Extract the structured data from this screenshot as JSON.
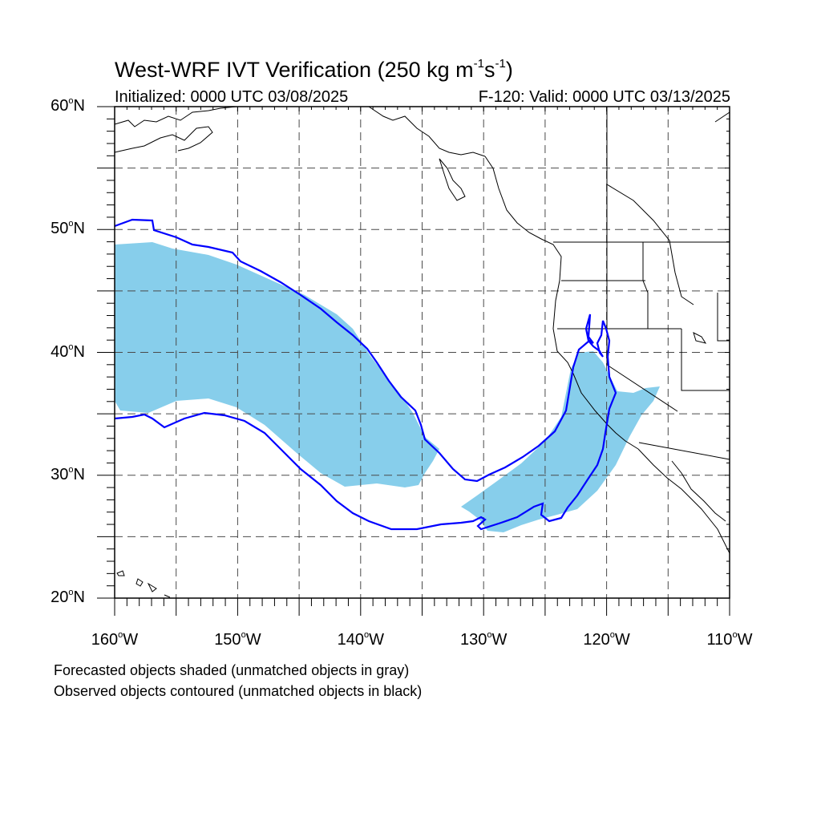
{
  "title": {
    "prefix": "West-WRF IVT Verification (250 kg m",
    "exp1": "-1",
    "mid": "s",
    "exp2": "-1",
    "suffix": ")"
  },
  "initialized": "Initialized: 0000 UTC 03/08/2025",
  "valid": "F-120: Valid: 0000 UTC 03/13/2025",
  "lat_labels": [
    {
      "num": "60",
      "suffix": "N"
    },
    {
      "num": "50",
      "suffix": "N"
    },
    {
      "num": "40",
      "suffix": "N"
    },
    {
      "num": "30",
      "suffix": "N"
    },
    {
      "num": "20",
      "suffix": "N"
    }
  ],
  "lon_labels": [
    {
      "num": "160",
      "suffix": "W"
    },
    {
      "num": "150",
      "suffix": "W"
    },
    {
      "num": "140",
      "suffix": "W"
    },
    {
      "num": "130",
      "suffix": "W"
    },
    {
      "num": "120",
      "suffix": "W"
    },
    {
      "num": "110",
      "suffix": "W"
    }
  ],
  "footnote_1": "Forecasted objects shaded (unmatched objects in gray)",
  "footnote_2": "Observed objects contoured (unmatched objects in black)",
  "colors": {
    "forecast_fill": "#87ceeb",
    "observed_contour": "#0000ff",
    "gridline": "#4a4a4a",
    "coastline": "#000000"
  },
  "map_extent": {
    "lon_min": -160,
    "lon_max": -110,
    "lat_min": 20,
    "lat_max": 60
  }
}
